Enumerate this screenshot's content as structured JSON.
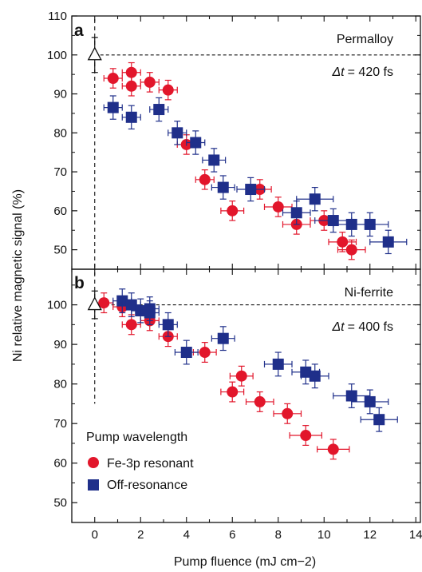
{
  "colors": {
    "resonant": "#e2162b",
    "off": "#1f2f8a",
    "axis": "#111111"
  },
  "chart_data": {
    "type": "scatter",
    "xlabel": "Pump fluence (mJ cm−2)",
    "ylabel": "Ni relative magnetic signal (%)",
    "x_ticks": [
      "0",
      "2",
      "4",
      "6",
      "8",
      "10",
      "12",
      "14"
    ],
    "xlim": [
      -1,
      14.2
    ],
    "legend": {
      "title": "Pump wavelength",
      "entries": [
        "Fe-3p resonant",
        "Off-resonance"
      ],
      "placement": "lower-left of panel b"
    },
    "panels": [
      {
        "id": "a",
        "label": "a",
        "material": "Permalloy",
        "delay_prefix": "Δt",
        "delay_value": "= 420 fs",
        "ylim": [
          45,
          110
        ],
        "y_ticks": [
          "50",
          "60",
          "70",
          "80",
          "90",
          "100",
          "110"
        ],
        "reference": {
          "x": 0,
          "y": 100,
          "yerr": 4.5
        },
        "series": [
          {
            "name": "Fe-3p resonant",
            "marker": "circle",
            "points": [
              {
                "x": 0.8,
                "y": 94,
                "xerr": 0.4,
                "yerr": 2.5
              },
              {
                "x": 1.6,
                "y": 95.5,
                "xerr": 0.4,
                "yerr": 2.5
              },
              {
                "x": 1.6,
                "y": 92,
                "xerr": 0.4,
                "yerr": 2.5
              },
              {
                "x": 2.4,
                "y": 93,
                "xerr": 0.4,
                "yerr": 2.5
              },
              {
                "x": 3.2,
                "y": 91,
                "xerr": 0.4,
                "yerr": 2.5
              },
              {
                "x": 4.0,
                "y": 77,
                "xerr": 0.4,
                "yerr": 2.5
              },
              {
                "x": 4.8,
                "y": 68,
                "xerr": 0.4,
                "yerr": 2.5
              },
              {
                "x": 6.0,
                "y": 60,
                "xerr": 0.5,
                "yerr": 2.5
              },
              {
                "x": 7.2,
                "y": 65.5,
                "xerr": 0.5,
                "yerr": 2.5
              },
              {
                "x": 8.0,
                "y": 61,
                "xerr": 0.6,
                "yerr": 2.5
              },
              {
                "x": 8.8,
                "y": 56.5,
                "xerr": 0.6,
                "yerr": 2.5
              },
              {
                "x": 10.0,
                "y": 57.5,
                "xerr": 0.6,
                "yerr": 2.5
              },
              {
                "x": 10.8,
                "y": 52,
                "xerr": 0.6,
                "yerr": 2.5
              },
              {
                "x": 11.2,
                "y": 50,
                "xerr": 0.6,
                "yerr": 2.5
              }
            ]
          },
          {
            "name": "Off-resonance",
            "marker": "square",
            "points": [
              {
                "x": 0.8,
                "y": 86.5,
                "xerr": 0.4,
                "yerr": 3
              },
              {
                "x": 1.6,
                "y": 84,
                "xerr": 0.4,
                "yerr": 3
              },
              {
                "x": 2.8,
                "y": 86,
                "xerr": 0.4,
                "yerr": 3
              },
              {
                "x": 3.6,
                "y": 80,
                "xerr": 0.4,
                "yerr": 3
              },
              {
                "x": 4.4,
                "y": 77.5,
                "xerr": 0.4,
                "yerr": 3
              },
              {
                "x": 5.2,
                "y": 73,
                "xerr": 0.5,
                "yerr": 3
              },
              {
                "x": 5.6,
                "y": 66,
                "xerr": 0.5,
                "yerr": 3
              },
              {
                "x": 6.8,
                "y": 65.5,
                "xerr": 0.6,
                "yerr": 3
              },
              {
                "x": 8.8,
                "y": 59.5,
                "xerr": 0.6,
                "yerr": 3
              },
              {
                "x": 9.6,
                "y": 63,
                "xerr": 0.8,
                "yerr": 3
              },
              {
                "x": 10.4,
                "y": 57.5,
                "xerr": 0.8,
                "yerr": 3
              },
              {
                "x": 11.2,
                "y": 56.5,
                "xerr": 0.8,
                "yerr": 3
              },
              {
                "x": 12.0,
                "y": 56.5,
                "xerr": 0.8,
                "yerr": 3
              },
              {
                "x": 12.8,
                "y": 52,
                "xerr": 0.8,
                "yerr": 3
              }
            ]
          }
        ]
      },
      {
        "id": "b",
        "label": "b",
        "material": "Ni-ferrite",
        "delay_prefix": "Δt",
        "delay_value": "= 400 fs",
        "ylim": [
          45,
          109
        ],
        "y_ticks": [
          "50",
          "60",
          "70",
          "80",
          "90",
          "100"
        ],
        "reference": {
          "x": 0,
          "y": 100,
          "yerr": 3.5
        },
        "series": [
          {
            "name": "Fe-3p resonant",
            "marker": "circle",
            "points": [
              {
                "x": 0.4,
                "y": 100.5,
                "xerr": 0.4,
                "yerr": 2.5
              },
              {
                "x": 1.2,
                "y": 99.5,
                "xerr": 0.4,
                "yerr": 2.5
              },
              {
                "x": 1.6,
                "y": 95,
                "xerr": 0.4,
                "yerr": 2.5
              },
              {
                "x": 2.4,
                "y": 96,
                "xerr": 0.4,
                "yerr": 2.5
              },
              {
                "x": 3.2,
                "y": 92,
                "xerr": 0.4,
                "yerr": 2.5
              },
              {
                "x": 4.8,
                "y": 88,
                "xerr": 0.5,
                "yerr": 2.5
              },
              {
                "x": 6.0,
                "y": 78,
                "xerr": 0.5,
                "yerr": 2.5
              },
              {
                "x": 6.4,
                "y": 82,
                "xerr": 0.5,
                "yerr": 2.5
              },
              {
                "x": 7.2,
                "y": 75.5,
                "xerr": 0.6,
                "yerr": 2.5
              },
              {
                "x": 8.4,
                "y": 72.5,
                "xerr": 0.6,
                "yerr": 2.5
              },
              {
                "x": 9.2,
                "y": 67,
                "xerr": 0.7,
                "yerr": 2.5
              },
              {
                "x": 10.4,
                "y": 63.5,
                "xerr": 0.7,
                "yerr": 2.5
              }
            ]
          },
          {
            "name": "Off-resonance",
            "marker": "square",
            "points": [
              {
                "x": 1.2,
                "y": 101,
                "xerr": 0.4,
                "yerr": 3
              },
              {
                "x": 1.6,
                "y": 100,
                "xerr": 0.4,
                "yerr": 3
              },
              {
                "x": 2.0,
                "y": 98.5,
                "xerr": 0.4,
                "yerr": 3
              },
              {
                "x": 2.4,
                "y": 99,
                "xerr": 0.4,
                "yerr": 3
              },
              {
                "x": 2.4,
                "y": 98,
                "xerr": 0.4,
                "yerr": 3
              },
              {
                "x": 3.2,
                "y": 95,
                "xerr": 0.4,
                "yerr": 3
              },
              {
                "x": 4.0,
                "y": 88,
                "xerr": 0.5,
                "yerr": 3
              },
              {
                "x": 5.6,
                "y": 91.5,
                "xerr": 0.5,
                "yerr": 3
              },
              {
                "x": 8.0,
                "y": 85,
                "xerr": 0.6,
                "yerr": 3
              },
              {
                "x": 9.2,
                "y": 83,
                "xerr": 0.6,
                "yerr": 3
              },
              {
                "x": 9.6,
                "y": 82,
                "xerr": 0.6,
                "yerr": 3
              },
              {
                "x": 11.2,
                "y": 77,
                "xerr": 0.8,
                "yerr": 3
              },
              {
                "x": 12.0,
                "y": 75.5,
                "xerr": 0.8,
                "yerr": 3
              },
              {
                "x": 12.4,
                "y": 71,
                "xerr": 0.8,
                "yerr": 3
              }
            ]
          }
        ]
      }
    ]
  }
}
